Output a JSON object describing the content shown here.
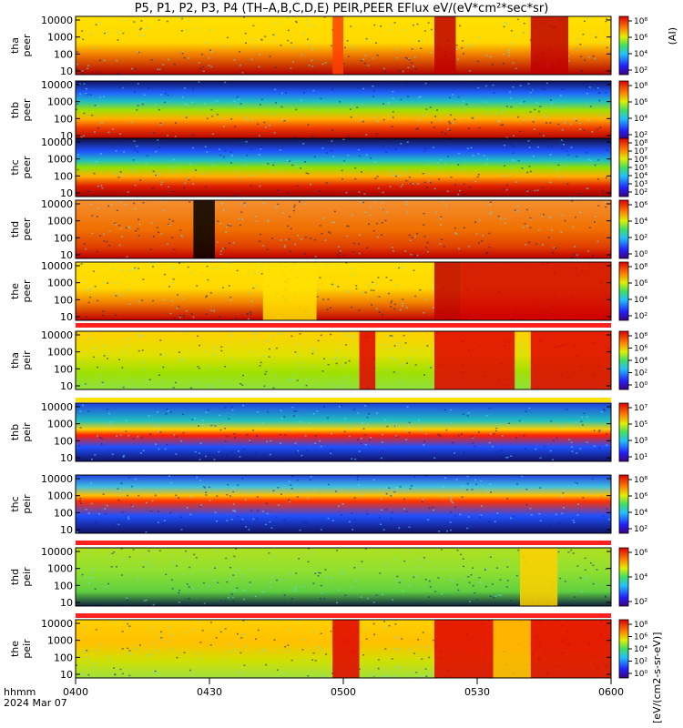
{
  "title": "P5, P1, P2, P3, P4 (TH–A,B,C,D,E) PEIR,PEER EFlux eV/(eV*cm²*sec*sr)",
  "chart_data": {
    "type": "heatmap",
    "x_ticks": [
      "0400",
      "0430",
      "0500",
      "0530",
      "0600"
    ],
    "x_range_minutes": [
      0,
      120
    ],
    "x_corner_label_top": "hhmm",
    "x_corner_label_bottom": "2024 Mar 07",
    "y_ticks": [
      "10000",
      "1000",
      "100",
      "10"
    ],
    "y_scale": "log",
    "panels": [
      {
        "probe": "tha",
        "species": "peer",
        "cb_ticks": [
          "10⁸",
          "10⁶",
          "10⁴",
          "10²"
        ],
        "side_label": "(AI)",
        "ebands": [
          [
            0,
            "#b00000"
          ],
          [
            0.35,
            "#f08000"
          ],
          [
            0.55,
            "#ffd800"
          ],
          [
            1,
            "#ffe000"
          ]
        ],
        "events": [
          [
            0.48,
            0.5,
            "#ff4000"
          ],
          [
            0.67,
            0.71,
            "#c00000"
          ],
          [
            0.85,
            0.92,
            "#c00000"
          ]
        ]
      },
      {
        "probe": "thb",
        "species": "peer",
        "cb_ticks": [
          "10⁸",
          "10⁶",
          "10⁴",
          "10²"
        ],
        "side_label": "",
        "ebands": [
          [
            0,
            "#b00000"
          ],
          [
            0.2,
            "#f04000"
          ],
          [
            0.35,
            "#ffb000"
          ],
          [
            0.5,
            "#a0e000"
          ],
          [
            0.65,
            "#20c0c0"
          ],
          [
            0.8,
            "#2060ff"
          ],
          [
            1,
            "#101060"
          ]
        ],
        "events": []
      },
      {
        "probe": "thc",
        "species": "peer",
        "cb_ticks": [
          "10⁸",
          "10⁷",
          "10⁶",
          "10⁵",
          "10⁴",
          "10³",
          "10²"
        ],
        "side_label": "",
        "ebands": [
          [
            0,
            "#a00000"
          ],
          [
            0.18,
            "#e02000"
          ],
          [
            0.35,
            "#ffb000"
          ],
          [
            0.5,
            "#90e000"
          ],
          [
            0.62,
            "#20c0c0"
          ],
          [
            0.78,
            "#2050ff"
          ],
          [
            1,
            "#101040"
          ]
        ],
        "events": []
      },
      {
        "probe": "thd",
        "species": "peer",
        "cb_ticks": [
          "10⁶",
          "10⁴",
          "10²",
          "10⁰"
        ],
        "side_label": "",
        "ebands": [
          [
            0,
            "#c00000"
          ],
          [
            0.2,
            "#e04000"
          ],
          [
            0.5,
            "#f07000"
          ],
          [
            1,
            "#f49030"
          ]
        ],
        "events": [
          [
            0.22,
            0.26,
            "#000000"
          ]
        ]
      },
      {
        "probe": "the",
        "species": "peer",
        "cb_ticks": [
          "10⁸",
          "10⁶",
          "10⁴",
          "10²"
        ],
        "side_label": "",
        "ebands": [
          [
            0,
            "#c00000"
          ],
          [
            0.3,
            "#f08000"
          ],
          [
            0.55,
            "#ffd800"
          ],
          [
            1,
            "#ffe000"
          ]
        ],
        "events": [
          [
            0.35,
            0.45,
            "#ffe000"
          ],
          [
            0.67,
            0.72,
            "#c00000"
          ],
          [
            0.72,
            1,
            "#d00000"
          ]
        ]
      },
      {
        "probe": "tha",
        "species": "peir",
        "cb_ticks": [
          "10⁸",
          "10⁶",
          "10⁴",
          "10²",
          "10⁰"
        ],
        "side_label": "",
        "ebands": [
          [
            0,
            "#90e040"
          ],
          [
            0.3,
            "#a0e000"
          ],
          [
            0.6,
            "#e0e000"
          ],
          [
            1,
            "#ffd000"
          ]
        ],
        "events": [
          [
            0.53,
            0.56,
            "#e00000"
          ],
          [
            0.67,
            0.82,
            "#e00000"
          ],
          [
            0.85,
            1,
            "#e00000"
          ]
        ]
      },
      {
        "probe": "thb",
        "species": "peir",
        "cb_ticks": [
          "10⁷",
          "10⁵",
          "10³",
          "10¹"
        ],
        "side_label": "",
        "ebands": [
          [
            0,
            "#101060"
          ],
          [
            0.25,
            "#2050ff"
          ],
          [
            0.45,
            "#ff2000"
          ],
          [
            0.55,
            "#ffd000"
          ],
          [
            0.7,
            "#20c0c0"
          ],
          [
            1,
            "#2040e0"
          ]
        ],
        "events": []
      },
      {
        "probe": "thc",
        "species": "peir",
        "cb_ticks": [
          "10⁸",
          "10⁶",
          "10⁴",
          "10²"
        ],
        "side_label": "",
        "ebands": [
          [
            0,
            "#101060"
          ],
          [
            0.3,
            "#2050ff"
          ],
          [
            0.55,
            "#ff3000"
          ],
          [
            0.65,
            "#ffc000"
          ],
          [
            0.8,
            "#40c0e0"
          ],
          [
            1,
            "#2040e0"
          ]
        ],
        "events": []
      },
      {
        "probe": "thd",
        "species": "peir",
        "cb_ticks": [
          "10⁶",
          "10⁴",
          "10²"
        ],
        "side_label": "",
        "ebands": [
          [
            0,
            "#102040"
          ],
          [
            0.25,
            "#60d040"
          ],
          [
            0.6,
            "#90e030"
          ],
          [
            1,
            "#b0e020"
          ]
        ],
        "events": [
          [
            0.83,
            0.9,
            "#ffd000"
          ]
        ]
      },
      {
        "probe": "the",
        "species": "peir",
        "cb_ticks": [
          "10⁸",
          "10⁶",
          "10⁴",
          "10²",
          "10⁰"
        ],
        "side_label": "",
        "ebands": [
          [
            0,
            "#a0e040"
          ],
          [
            0.3,
            "#d0e000"
          ],
          [
            0.6,
            "#ffc000"
          ],
          [
            1,
            "#ffd000"
          ]
        ],
        "events": [
          [
            0.48,
            0.53,
            "#e00000"
          ],
          [
            0.67,
            0.78,
            "#e00000"
          ],
          [
            0.78,
            0.85,
            "#ffb000"
          ],
          [
            0.85,
            1,
            "#e00000"
          ]
        ]
      }
    ],
    "colorbar_unit": "[eV/(cm2-s-sr-eV)]"
  }
}
